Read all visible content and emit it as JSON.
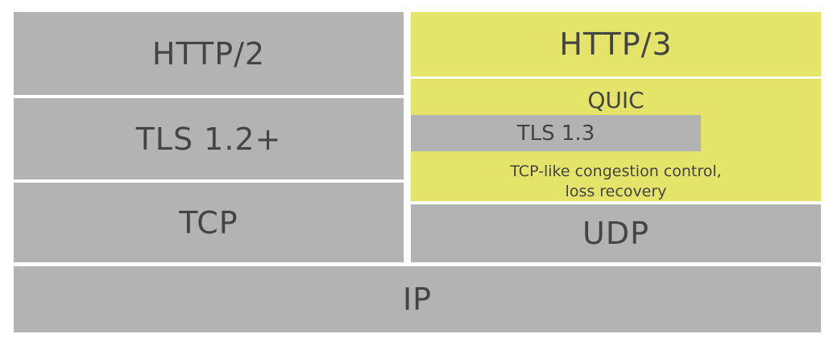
{
  "left_stack": {
    "http2": "HTTP/2",
    "tls": "TLS 1.2+",
    "tcp": "TCP"
  },
  "right_stack": {
    "http3": "HTTP/3",
    "quic": {
      "label": "QUIC",
      "tls": "TLS 1.3",
      "congestion_line1": "TCP-like congestion control,",
      "congestion_line2": "loss recovery"
    },
    "udp": "UDP"
  },
  "base": {
    "ip": "IP"
  },
  "colors": {
    "gray": "#b3b3b3",
    "yellow": "#e4e46a",
    "text": "#444444"
  }
}
